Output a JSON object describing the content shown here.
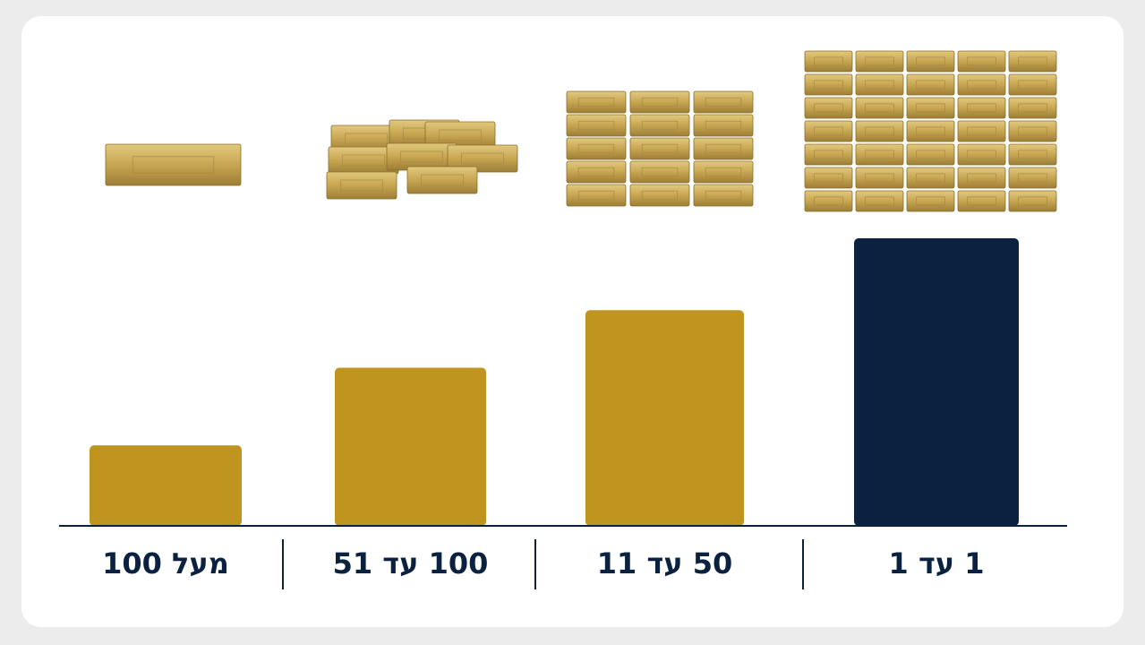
{
  "chart_data": {
    "type": "bar",
    "categories": [
      "מעל 100",
      "100 עד 51",
      "50 עד 11",
      "1 עד 1"
    ],
    "values": [
      28,
      55,
      75,
      100
    ],
    "colors": [
      "#c0951f",
      "#c0951f",
      "#c0951f",
      "#0a2240"
    ],
    "ylim": [
      0,
      100
    ]
  }
}
